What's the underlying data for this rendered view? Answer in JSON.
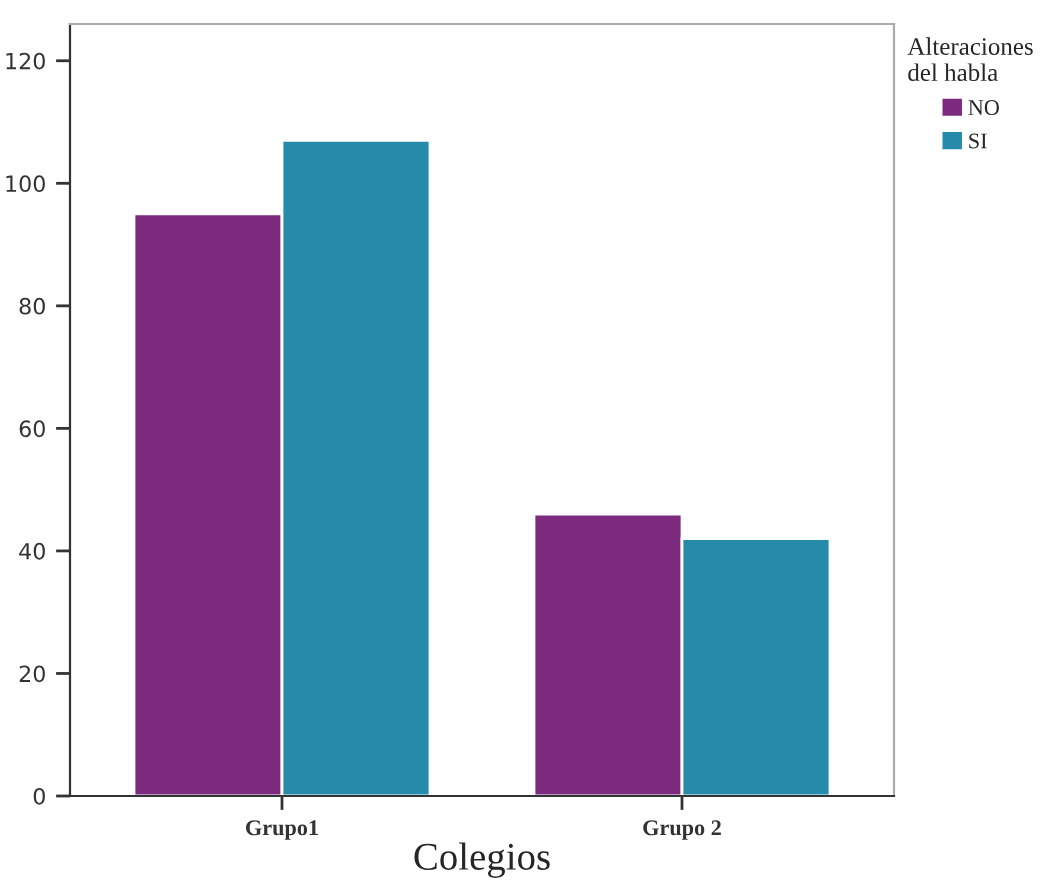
{
  "chart_data": {
    "type": "bar",
    "xlabel": "Colegios",
    "legend_title": "Alteraciones\ndel habla",
    "categories": [
      "Grupo1",
      "Grupo 2"
    ],
    "series": [
      {
        "name": "NO",
        "color": "#7b2a7e",
        "values": [
          95,
          46
        ]
      },
      {
        "name": "SI",
        "color": "#268aab",
        "values": [
          107,
          42
        ]
      }
    ],
    "ylim": [
      0,
      126
    ],
    "yticks": [
      0,
      20,
      40,
      60,
      80,
      100,
      120
    ],
    "grid": false,
    "legend": "top right"
  }
}
